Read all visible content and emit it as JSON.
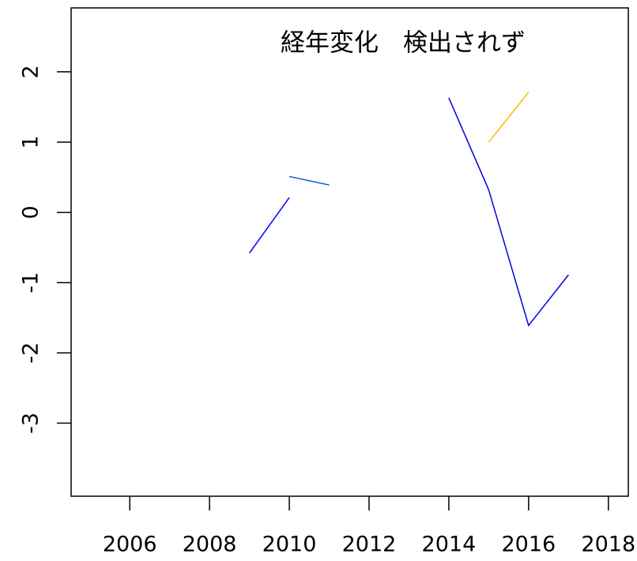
{
  "chart_data": {
    "type": "line",
    "annotation": "経年変化　検出されず",
    "series": [
      {
        "color": "#0000ff",
        "x": [
          2009,
          2010
        ],
        "values": [
          -0.58,
          0.21
        ]
      },
      {
        "color": "#1a5fd6",
        "x": [
          2010,
          2011
        ],
        "values": [
          0.51,
          0.39
        ]
      },
      {
        "color": "#0000dd",
        "x": [
          2014,
          2015,
          2016,
          2017
        ],
        "values": [
          1.63,
          0.32,
          -1.61,
          -0.89
        ]
      },
      {
        "color": "#f5b800",
        "x": [
          2015,
          2016
        ],
        "values": [
          1.0,
          1.71
        ]
      }
    ],
    "xlim": [
      2004.53,
      2018.5
    ],
    "xticks": [
      2006,
      2008,
      2010,
      2012,
      2014,
      2016,
      2018
    ],
    "ylim": [
      -4.04,
      2.91
    ],
    "yticks": [
      -3,
      -2,
      -1,
      0,
      1,
      2
    ]
  }
}
